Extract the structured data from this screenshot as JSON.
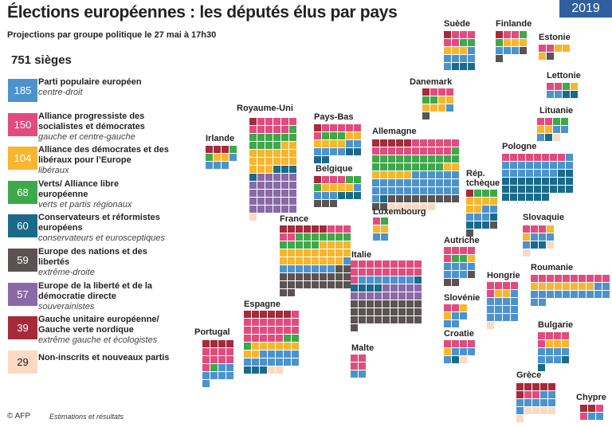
{
  "title": "Élections européennes : les députés élus par pays",
  "subtitle": "Projections par groupe politique le 27 mai à 17h30",
  "year": "2019",
  "total": "751 sièges",
  "groups": [
    {
      "count": 185,
      "name": "Parti populaire européen",
      "subtitle": "centre-droit",
      "color": "#4c93cd"
    },
    {
      "count": 150,
      "name": "Alliance progressiste des socialistes et démocrates",
      "subtitle": "gauche et centre-gauche",
      "color": "#e14c7f"
    },
    {
      "count": 104,
      "name": "Alliance des démocrates et des libéraux pour l’Europe",
      "subtitle": "libéraux",
      "color": "#f6b630"
    },
    {
      "count": 68,
      "name": "Verts/ Alliance libre européenne",
      "subtitle": "verts et partis régionaux",
      "color": "#3fa84a"
    },
    {
      "count": 60,
      "name": "Conservateurs et réformistes européens",
      "subtitle": "conservateurs et eurosceptiques",
      "color": "#1b6a8a"
    },
    {
      "count": 59,
      "name": "Europe des nations et des libertés",
      "subtitle": "extrême-droite",
      "color": "#5b5353"
    },
    {
      "count": 57,
      "name": "Europe de la liberté et de la démocratie directe",
      "subtitle": "souverainistes",
      "color": "#8a6aa6"
    },
    {
      "count": 39,
      "name": "Gauche unitaire européenne/ Gauche verte nordique",
      "subtitle": "extrême gauche et écologistes",
      "color": "#a52a3b"
    },
    {
      "count": 29,
      "name": "Non-inscrits et nouveaux partis",
      "color": "#fbd9c2"
    }
  ],
  "countries": [
    {
      "name": "Suède",
      "seats": [
        6,
        5,
        3,
        2,
        3,
        0,
        0,
        1,
        0
      ]
    },
    {
      "name": "Finlande",
      "seats": [
        3,
        2,
        3,
        2,
        0,
        2,
        0,
        1,
        0
      ]
    },
    {
      "name": "Estonie",
      "seats": [
        0,
        2,
        3,
        0,
        0,
        1,
        0,
        0,
        0
      ]
    },
    {
      "name": "Lettonie",
      "seats": [
        2,
        2,
        1,
        1,
        2,
        0,
        0,
        0,
        0
      ]
    },
    {
      "name": "Danemark",
      "seats": [
        1,
        3,
        5,
        2,
        0,
        1,
        0,
        1,
        0
      ]
    },
    {
      "name": "Lituanie",
      "seats": [
        3,
        2,
        2,
        2,
        1,
        0,
        0,
        0,
        1
      ]
    },
    {
      "name": "Royaume-Uni",
      "seats": [
        0,
        10,
        17,
        11,
        4,
        0,
        29,
        1,
        1
      ]
    },
    {
      "name": "Pays-Bas",
      "seats": [
        6,
        6,
        6,
        3,
        4,
        0,
        0,
        1,
        0
      ]
    },
    {
      "name": "Irlande",
      "seats": [
        4,
        0,
        2,
        2,
        0,
        0,
        0,
        3,
        0
      ]
    },
    {
      "name": "Allemagne",
      "seats": [
        29,
        16,
        7,
        21,
        1,
        11,
        0,
        5,
        6
      ]
    },
    {
      "name": "Pologne",
      "seats": [
        17,
        8,
        0,
        0,
        26,
        0,
        0,
        0,
        0
      ]
    },
    {
      "name": "Belgique",
      "seats": [
        4,
        3,
        4,
        3,
        3,
        3,
        0,
        1,
        0
      ]
    },
    {
      "name": "Rép. tchèque",
      "seats": [
        5,
        0,
        6,
        3,
        4,
        2,
        0,
        1,
        0
      ]
    },
    {
      "name": "Luxembourg",
      "seats": [
        2,
        1,
        2,
        1,
        0,
        0,
        0,
        0,
        0
      ]
    },
    {
      "name": "Slovaquie",
      "seats": [
        4,
        3,
        2,
        0,
        2,
        0,
        0,
        0,
        2
      ]
    },
    {
      "name": "France",
      "seats": [
        8,
        5,
        21,
        12,
        0,
        22,
        0,
        6,
        0
      ]
    },
    {
      "name": "Autriche",
      "seats": [
        7,
        5,
        1,
        2,
        0,
        3,
        0,
        0,
        0
      ]
    },
    {
      "name": "Italie",
      "seats": [
        7,
        19,
        0,
        0,
        5,
        28,
        14,
        0,
        0
      ]
    },
    {
      "name": "Roumanie",
      "seats": [
        14,
        10,
        8,
        0,
        0,
        0,
        0,
        0,
        0
      ]
    },
    {
      "name": "Hongrie",
      "seats": [
        13,
        5,
        2,
        0,
        0,
        0,
        0,
        0,
        1
      ]
    },
    {
      "name": "Slovénie",
      "seats": [
        4,
        2,
        2,
        0,
        0,
        0,
        0,
        0,
        0
      ]
    },
    {
      "name": "Espagne",
      "seats": [
        12,
        20,
        8,
        3,
        3,
        0,
        0,
        6,
        2
      ]
    },
    {
      "name": "Bulgarie",
      "seats": [
        7,
        5,
        3,
        0,
        2,
        0,
        0,
        0,
        0
      ]
    },
    {
      "name": "Portugal",
      "seats": [
        7,
        9,
        0,
        1,
        0,
        0,
        0,
        4,
        0
      ]
    },
    {
      "name": "Croatie",
      "seats": [
        4,
        4,
        1,
        0,
        1,
        0,
        0,
        0,
        1
      ]
    },
    {
      "name": "Malte",
      "seats": [
        2,
        4,
        0,
        0,
        0,
        0,
        0,
        0,
        0
      ]
    },
    {
      "name": "Grèce",
      "seats": [
        8,
        2,
        0,
        0,
        0,
        0,
        0,
        6,
        5
      ]
    },
    {
      "name": "Chypre",
      "seats": [
        2,
        2,
        0,
        0,
        0,
        0,
        0,
        2,
        0
      ]
    }
  ],
  "footer": {
    "credit": "© AFP",
    "note": "Estimations et résultats"
  }
}
